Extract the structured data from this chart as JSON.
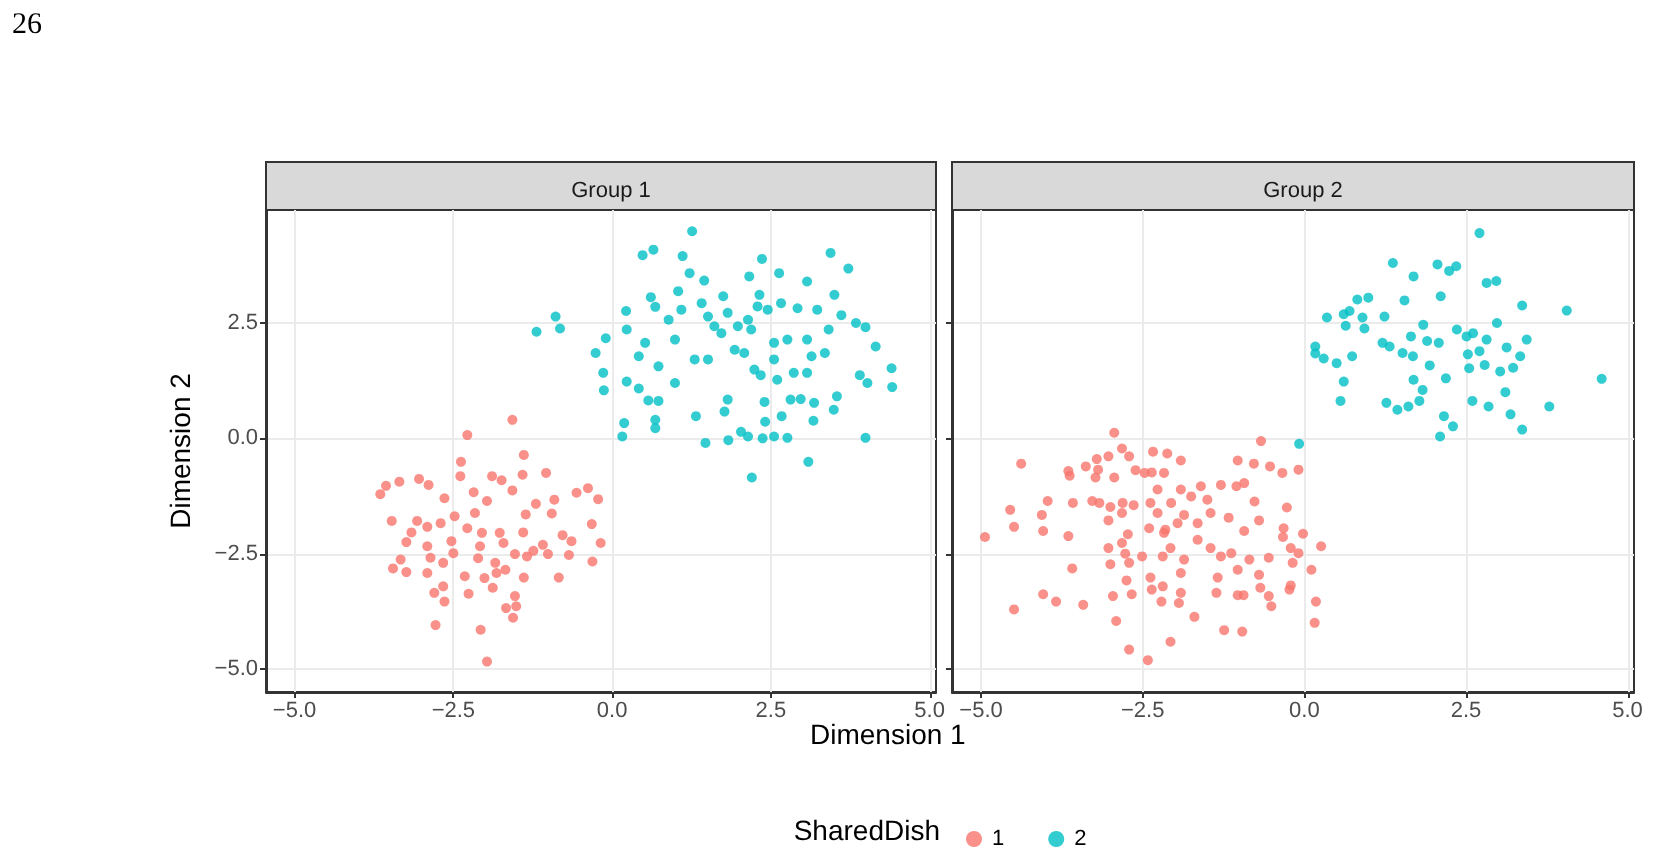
{
  "chart_data": [
    {
      "type": "scatter",
      "title": "Group 1",
      "xlabel": "Dimension 1",
      "ylabel": "Dimension 2",
      "legend_title": "SharedDish",
      "legend": "bottom",
      "grid": true,
      "marker": "circle",
      "annotations": [
        "26"
      ],
      "xlim": [
        -5.45,
        5.1
      ],
      "xticks": [
        {
          "value": -5,
          "label": "−5.0"
        },
        {
          "value": -2.5,
          "label": "−2.5"
        },
        {
          "value": 0,
          "label": "0.0"
        },
        {
          "value": 2.5,
          "label": "2.5"
        },
        {
          "value": 5,
          "label": "5.0"
        }
      ],
      "ylim": [
        -5.5,
        4.95
      ],
      "yticks": [
        {
          "value": -5,
          "label": "−5.0"
        },
        {
          "value": -2.5,
          "label": "−2.5"
        },
        {
          "value": 0,
          "label": "0.0"
        },
        {
          "value": 2.5,
          "label": "2.5"
        }
      ],
      "series": [
        {
          "name": "1",
          "color": "#f8766d",
          "x": [
            -2.28,
            -1.57,
            -2.38,
            -1.39,
            -3.65,
            -3.56,
            -3.35,
            -3.04,
            -2.89,
            -2.64,
            -2.39,
            -1.89,
            -1.74,
            -1.41,
            -1.04,
            -2.18,
            -1.97,
            -1.57,
            -1.2,
            -0.91,
            -0.56,
            -0.38,
            -0.22,
            -3.47,
            -3.07,
            -2.91,
            -2.7,
            -2.48,
            -2.16,
            -2.05,
            -1.77,
            -1.36,
            -0.95,
            -0.32,
            -3.16,
            -3.24,
            -2.91,
            -2.53,
            -2.28,
            -2.08,
            -1.71,
            -1.4,
            -1.24,
            -1.09,
            -0.78,
            -0.64,
            -0.18,
            -3.33,
            -3.45,
            -3.24,
            -2.86,
            -2.66,
            -2.91,
            -2.5,
            -2.11,
            -1.84,
            -1.68,
            -1.53,
            -1.34,
            -1.01,
            -0.68,
            -0.31,
            -2.32,
            -2.01,
            -1.82,
            -1.39,
            -0.84,
            -2.8,
            -2.26,
            -2.64,
            -2.66,
            -1.88,
            -1.53,
            -1.51,
            -1.67,
            -1.56,
            -2.78,
            -2.07,
            -1.97
          ],
          "values": [
            0.07,
            0.4,
            -0.51,
            -0.36,
            -1.21,
            -1.03,
            -0.94,
            -0.88,
            -1.01,
            -1.3,
            -0.82,
            -0.82,
            -0.91,
            -0.79,
            -0.75,
            -1.17,
            -1.36,
            -1.13,
            -1.42,
            -1.33,
            -1.18,
            -1.08,
            -1.32,
            -1.79,
            -1.79,
            -1.92,
            -1.84,
            -1.69,
            -1.62,
            -2.05,
            -2.05,
            -1.65,
            -1.63,
            -1.86,
            -2.04,
            -2.25,
            -2.34,
            -2.23,
            -1.95,
            -2.34,
            -2.27,
            -2.04,
            -2.44,
            -2.31,
            -2.1,
            -2.23,
            -2.27,
            -2.63,
            -2.82,
            -2.9,
            -2.59,
            -2.7,
            -2.92,
            -2.49,
            -2.6,
            -2.7,
            -2.85,
            -2.51,
            -2.56,
            -2.51,
            -2.53,
            -2.67,
            -2.99,
            -3.03,
            -2.92,
            -3.02,
            -3.02,
            -3.35,
            -3.37,
            -3.54,
            -3.21,
            -3.24,
            -3.42,
            -3.64,
            -3.68,
            -3.89,
            -4.05,
            -4.15,
            -4.84
          ]
        },
        {
          "name": "2",
          "color": "#00bfc4",
          "x": [
            1.26,
            0.48,
            0.65,
            1.11,
            1.22,
            2.36,
            3.44,
            3.72,
            1.45,
            2.16,
            2.63,
            3.07,
            0.61,
            0.68,
            0.22,
            -0.89,
            -0.82,
            -1.19,
            1.04,
            1.75,
            2.32,
            3.5,
            0.89,
            1.09,
            1.51,
            1.82,
            2.14,
            2.45,
            2.92,
            3.23,
            3.61,
            0.23,
            -0.1,
            -0.26,
            0.42,
            0.73,
            0.52,
            0.99,
            1.3,
            1.72,
            1.93,
            2.19,
            2.55,
            2.76,
            3.07,
            3.41,
            3.84,
            3.99,
            4.15,
            4.4,
            4.41,
            4.02,
            3.9,
            -0.14,
            -0.13,
            0.23,
            0.42,
            0.57,
            0.73,
            0.99,
            1.32,
            0.68,
            0.68,
            0.19,
            0.16,
            1.47,
            1.83,
            2.03,
            2.14,
            2.37,
            2.55,
            2.76,
            2.41,
            2.67,
            2.2,
            3.09,
            3.17,
            3.99,
            3.49,
            3.54,
            3.18,
            2.97,
            2.81,
            2.4,
            1.82,
            1.77,
            2.34,
            2.6,
            2.86,
            3.07,
            2.24,
            2.08,
            1.51,
            2.55,
            3.14,
            3.35,
            1.61,
            1.98,
            2.29,
            2.66,
            1.41
          ],
          "values": [
            4.49,
            3.97,
            4.09,
            3.95,
            3.58,
            3.89,
            4.02,
            3.68,
            3.42,
            3.51,
            3.58,
            3.4,
            3.06,
            2.85,
            2.76,
            2.64,
            2.38,
            2.31,
            3.19,
            3.08,
            3.11,
            3.11,
            2.57,
            2.79,
            2.64,
            2.72,
            2.57,
            2.79,
            2.82,
            2.79,
            2.67,
            2.36,
            2.17,
            1.85,
            1.78,
            1.56,
            2.07,
            2.14,
            1.71,
            2.28,
            1.92,
            2.36,
            2.07,
            2.14,
            2.14,
            2.36,
            2.5,
            2.41,
            1.99,
            1.52,
            1.11,
            1.2,
            1.37,
            1.42,
            1.04,
            1.23,
            1.08,
            0.82,
            0.81,
            1.2,
            0.48,
            0.4,
            0.22,
            0.33,
            0.04,
            -0.1,
            -0.04,
            0.14,
            0.04,
            0,
            0.04,
            0.01,
            0.36,
            0.48,
            -0.85,
            -0.51,
            0.38,
            0.01,
            0.62,
            0.91,
            0.77,
            0.85,
            0.84,
            0.79,
            0.84,
            0.58,
            1.37,
            1.27,
            1.42,
            1.42,
            1.49,
            1.85,
            1.71,
            1.71,
            1.78,
            1.85,
            2.43,
            2.43,
            2.86,
            2.93,
            2.93
          ]
        }
      ]
    },
    {
      "type": "scatter",
      "title": "Group 2",
      "grid": true,
      "marker": "circle",
      "tick_labels": "x",
      "xlim": [
        -5.45,
        5.1
      ],
      "xticks": [
        {
          "value": -5,
          "label": "−5.0"
        },
        {
          "value": -2.5,
          "label": "−2.5"
        },
        {
          "value": 0,
          "label": "0.0"
        },
        {
          "value": 2.5,
          "label": "2.5"
        },
        {
          "value": 5,
          "label": "5.0"
        }
      ],
      "ylim": [
        -5.5,
        4.95
      ],
      "yticks": [
        {
          "value": -5,
          "label": null
        },
        {
          "value": -2.5,
          "label": null
        },
        {
          "value": 0,
          "label": null
        },
        {
          "value": 2.5,
          "label": null
        }
      ],
      "series": [
        {
          "name": "1",
          "color": "#f8766d",
          "x": [
            -4.94,
            -4.38,
            -4.55,
            -4.49,
            -4.49,
            -4.04,
            -3.84,
            -3.42,
            -3.59,
            -3.65,
            -4.04,
            -4.06,
            -3.97,
            -3.65,
            -3.63,
            -3.38,
            -3.21,
            -3.03,
            -2.94,
            -2.82,
            -2.71,
            -3.23,
            -2.94,
            -2.61,
            -2.34,
            -2.12,
            -1.91,
            -2.36,
            -2.47,
            -2.17,
            -3.28,
            -3.17,
            -3,
            -2.81,
            -2.64,
            -3.03,
            -2.82,
            -2.38,
            -2.27,
            -2.06,
            -1.91,
            -1.75,
            -1.6,
            -1.5,
            -1.29,
            -1.05,
            -0.93,
            -0.77,
            -0.67,
            -1.03,
            -0.78,
            -0.53,
            -0.34,
            -0.09,
            -0.27,
            -0.7,
            -0.93,
            -1.17,
            -1.45,
            -1.65,
            -1.86,
            -1.96,
            -2.15,
            -2.4,
            -2.73,
            -2.82,
            -3.03,
            -2.77,
            -3,
            -2.75,
            -2.71,
            -2.51,
            -2.38,
            -2.36,
            -2.19,
            -2.19,
            -2.07,
            -1.86,
            -1.91,
            -1.91,
            -1.65,
            -1.45,
            -1.29,
            -1.34,
            -1.36,
            -1.13,
            -1.03,
            -0.85,
            -0.7,
            -0.55,
            -0.32,
            -0.33,
            -0.21,
            -0.09,
            -0.18,
            -0.21,
            -0.23,
            -0.55,
            -0.51,
            -0.94,
            -1.03,
            -0.68,
            0.11,
            0.26,
            -0.02,
            0.18,
            0.16,
            -1.24,
            -0.96,
            -1.7,
            -2.07,
            -2.42,
            -2.71,
            -2.91,
            -2.96,
            -2.67,
            -2.21,
            -1.94,
            -3.58,
            -3.19,
            -2.27,
            -2.17
          ],
          "values": [
            -2.14,
            -0.55,
            -1.55,
            -1.92,
            -3.71,
            -3.38,
            -3.54,
            -3.61,
            -2.82,
            -2.12,
            -2.01,
            -1.66,
            -1.36,
            -0.71,
            -0.81,
            -0.61,
            -0.45,
            -0.39,
            0.12,
            -0.22,
            -0.39,
            -0.85,
            -0.85,
            -0.69,
            -0.29,
            -0.33,
            -0.48,
            -0.74,
            -0.75,
            -0.75,
            -1.36,
            -1.4,
            -1.49,
            -1.4,
            -1.45,
            -1.78,
            -1.62,
            -1.4,
            -1.62,
            -1.4,
            -1.11,
            -1.26,
            -1.04,
            -1.33,
            -1.01,
            -1.04,
            -0.97,
            -1.37,
            -0.06,
            -0.48,
            -0.55,
            -0.61,
            -0.75,
            -0.68,
            -1.5,
            -1.78,
            -2.01,
            -1.72,
            -1.62,
            -1.84,
            -1.66,
            -1.84,
            -1.98,
            -1.95,
            -2.08,
            -2.27,
            -2.38,
            -2.5,
            -2.73,
            -3.08,
            -2.7,
            -2.56,
            -3.02,
            -3.28,
            -3.21,
            -2.56,
            -2.38,
            -2.63,
            -2.92,
            -3.35,
            -2.2,
            -2.38,
            -2.56,
            -3.02,
            -3.35,
            -2.49,
            -2.85,
            -2.63,
            -2.96,
            -2.59,
            -1.95,
            -2.14,
            -2.38,
            -2.49,
            -2.7,
            -3.19,
            -3.28,
            -3.42,
            -3.64,
            -3.4,
            -3.4,
            -3.24,
            -2.85,
            -2.34,
            -2.07,
            -3.54,
            -4,
            -4.16,
            -4.19,
            -3.87,
            -4.41,
            -4.81,
            -4.58,
            -3.96,
            -3.42,
            -3.38,
            -3.54,
            -3.57,
            -1.4,
            -0.68,
            -1.11,
            -2.05
          ]
        },
        {
          "name": "2",
          "color": "#00bfc4",
          "x": [
            2.71,
            1.37,
            2.06,
            2.24,
            2.35,
            1.69,
            2.82,
            2.97,
            2.11,
            0.82,
            0.99,
            1.55,
            3.37,
            4.06,
            0.35,
            0.61,
            0.7,
            0.9,
            1.24,
            0.64,
            0.93,
            1.84,
            2.36,
            2.51,
            2.61,
            2.98,
            0.17,
            0.17,
            0.3,
            0.5,
            0.74,
            1.21,
            1.32,
            1.65,
            1.9,
            2.08,
            2.82,
            3.44,
            3.13,
            3.34,
            2.53,
            2.71,
            1.52,
            1.68,
            1.94,
            2.19,
            2.55,
            2.79,
            3.03,
            3.23,
            0.61,
            0.56,
            1.69,
            1.83,
            1.78,
            1.27,
            1.44,
            1.61,
            2.6,
            2.85,
            3.11,
            3.19,
            3.79,
            4.6,
            2.16,
            2.3,
            2.1,
            3.37,
            -0.08
          ],
          "values": [
            4.45,
            3.8,
            3.77,
            3.63,
            3.73,
            3.51,
            3.37,
            3.41,
            3.08,
            3.01,
            3.05,
            2.99,
            2.88,
            2.77,
            2.62,
            2.69,
            2.76,
            2.62,
            2.64,
            2.44,
            2.38,
            2.46,
            2.36,
            2.21,
            2.28,
            2.5,
            1.99,
            1.84,
            1.73,
            1.63,
            1.78,
            2.07,
            1.99,
            2.21,
            2.11,
            2.07,
            2.14,
            2.14,
            1.97,
            1.78,
            1.82,
            1.89,
            1.85,
            1.78,
            1.58,
            1.3,
            1.52,
            1.59,
            1.45,
            1.53,
            1.23,
            0.81,
            1.27,
            1.05,
            0.81,
            0.77,
            0.62,
            0.69,
            0.81,
            0.69,
            1,
            0.52,
            0.69,
            1.29,
            0.48,
            0.26,
            0.04,
            0.19,
            -0.12
          ]
        }
      ]
    }
  ]
}
